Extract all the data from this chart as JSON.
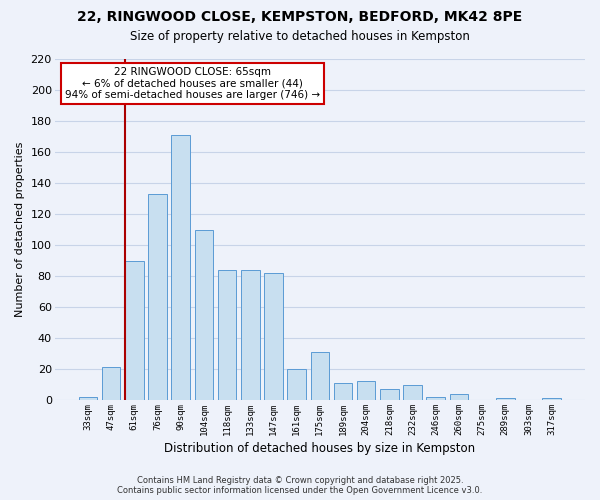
{
  "title1": "22, RINGWOOD CLOSE, KEMPSTON, BEDFORD, MK42 8PE",
  "title2": "Size of property relative to detached houses in Kempston",
  "xlabel": "Distribution of detached houses by size in Kempston",
  "ylabel": "Number of detached properties",
  "bar_labels": [
    "33sqm",
    "47sqm",
    "61sqm",
    "76sqm",
    "90sqm",
    "104sqm",
    "118sqm",
    "133sqm",
    "147sqm",
    "161sqm",
    "175sqm",
    "189sqm",
    "204sqm",
    "218sqm",
    "232sqm",
    "246sqm",
    "260sqm",
    "275sqm",
    "289sqm",
    "303sqm",
    "317sqm"
  ],
  "bar_values": [
    2,
    21,
    90,
    133,
    171,
    110,
    84,
    84,
    82,
    20,
    31,
    11,
    12,
    7,
    10,
    2,
    4,
    0,
    1,
    0,
    1
  ],
  "bar_color": "#c8dff0",
  "bar_edge_color": "#5b9bd5",
  "grid_color": "#c8d4e8",
  "background_color": "#eef2fa",
  "vline_x_index": 2,
  "vline_color": "#aa0000",
  "annotation_title": "22 RINGWOOD CLOSE: 65sqm",
  "annotation_line1": "← 6% of detached houses are smaller (44)",
  "annotation_line2": "94% of semi-detached houses are larger (746) →",
  "annotation_box_color": "#ffffff",
  "annotation_border_color": "#cc0000",
  "ylim": [
    0,
    220
  ],
  "yticks": [
    0,
    20,
    40,
    60,
    80,
    100,
    120,
    140,
    160,
    180,
    200,
    220
  ],
  "footnote1": "Contains HM Land Registry data © Crown copyright and database right 2025.",
  "footnote2": "Contains public sector information licensed under the Open Government Licence v3.0."
}
